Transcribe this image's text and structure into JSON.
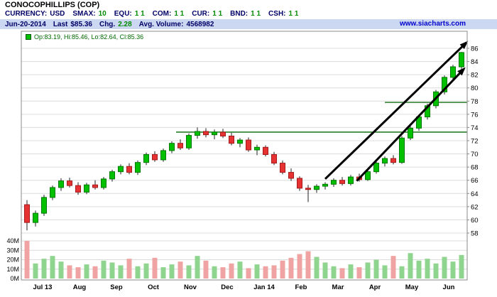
{
  "header": {
    "title": "CONOCOPHILLIPS (COP)",
    "stats": [
      {
        "label": "CURRENCY:",
        "value": "USD",
        "value_color": "#000066"
      },
      {
        "label": "SMAX:",
        "value": "10",
        "value_color": "#008a00"
      },
      {
        "label": "EQU:",
        "value": "1 1",
        "value_color": "#008a00"
      },
      {
        "label": "COM:",
        "value": "1 1",
        "value_color": "#008a00"
      },
      {
        "label": "CUR:",
        "value": "1 1",
        "value_color": "#008a00"
      },
      {
        "label": "BND:",
        "value": "1 1",
        "value_color": "#008a00"
      },
      {
        "label": "CSH:",
        "value": "1 1",
        "value_color": "#008a00"
      }
    ],
    "info_bar": {
      "date": "Jun-20-2014",
      "last_label": "Last",
      "last_value": "$85.36",
      "chg_label": "Chg.",
      "chg_value": "2.28",
      "avg_volume_label": "Avg. Volume:",
      "avg_volume_value": "4568982",
      "website": "www.siacharts.com"
    }
  },
  "legend": {
    "text": "Op:83.19, Hi:85.46, Lo:82.64, Cl:85.36"
  },
  "chart_data": {
    "type": "candlestick",
    "title": "CONOCOPHILLIPS (COP) weekly price with volume",
    "x_labels": [
      "Jul 13",
      "Aug",
      "Sep",
      "Oct",
      "Nov",
      "Dec",
      "Jan 14",
      "Feb",
      "Mar",
      "Apr",
      "May",
      "Jun"
    ],
    "price_axis": {
      "min": 58,
      "max": 86
    },
    "price_ticks": [
      58,
      60,
      62,
      64,
      66,
      68,
      70,
      72,
      74,
      76,
      78,
      80,
      82,
      84,
      86
    ],
    "volume_ticks_m": [
      0,
      10,
      20,
      30,
      40
    ],
    "last_candle": {
      "open": 83.19,
      "high": 85.46,
      "low": 82.64,
      "close": 85.36
    },
    "candles_ohlc": [
      [
        62.3,
        63.0,
        58.4,
        59.6
      ],
      [
        59.6,
        61.4,
        59.0,
        61.0
      ],
      [
        61.0,
        63.8,
        60.6,
        63.4
      ],
      [
        63.4,
        65.2,
        63.0,
        64.9
      ],
      [
        64.9,
        66.3,
        64.4,
        65.9
      ],
      [
        65.9,
        66.4,
        64.9,
        65.2
      ],
      [
        65.2,
        65.7,
        63.8,
        64.2
      ],
      [
        64.2,
        65.6,
        63.9,
        65.3
      ],
      [
        65.3,
        66.0,
        64.6,
        64.9
      ],
      [
        64.9,
        66.5,
        64.6,
        66.2
      ],
      [
        66.2,
        67.6,
        65.8,
        67.3
      ],
      [
        67.3,
        68.4,
        66.9,
        68.1
      ],
      [
        68.1,
        68.6,
        66.9,
        67.2
      ],
      [
        67.2,
        69.0,
        66.8,
        68.7
      ],
      [
        68.7,
        70.2,
        68.3,
        69.9
      ],
      [
        69.9,
        70.4,
        68.8,
        69.1
      ],
      [
        69.1,
        70.8,
        68.8,
        70.5
      ],
      [
        70.5,
        71.9,
        70.1,
        71.6
      ],
      [
        71.6,
        72.2,
        70.6,
        70.9
      ],
      [
        70.9,
        73.1,
        70.6,
        72.8
      ],
      [
        72.8,
        74.0,
        72.3,
        73.4
      ],
      [
        73.4,
        73.9,
        72.5,
        72.9
      ],
      [
        72.9,
        73.7,
        72.2,
        73.3
      ],
      [
        73.3,
        73.8,
        72.4,
        72.7
      ],
      [
        72.7,
        73.2,
        71.3,
        71.6
      ],
      [
        71.6,
        72.4,
        71.0,
        72.1
      ],
      [
        72.1,
        72.5,
        70.3,
        70.6
      ],
      [
        70.6,
        71.4,
        69.8,
        71.0
      ],
      [
        71.0,
        71.3,
        69.6,
        69.9
      ],
      [
        69.9,
        70.3,
        68.3,
        68.6
      ],
      [
        68.6,
        69.0,
        66.9,
        67.2
      ],
      [
        67.2,
        67.8,
        65.9,
        66.3
      ],
      [
        66.3,
        66.6,
        64.4,
        64.8
      ],
      [
        64.8,
        65.3,
        62.7,
        64.6
      ],
      [
        64.6,
        65.4,
        64.1,
        65.1
      ],
      [
        65.1,
        65.7,
        64.6,
        65.4
      ],
      [
        65.4,
        66.3,
        65.0,
        66.0
      ],
      [
        66.0,
        66.5,
        65.2,
        65.5
      ],
      [
        65.5,
        66.8,
        65.2,
        66.5
      ],
      [
        66.5,
        67.0,
        65.8,
        66.1
      ],
      [
        66.1,
        67.6,
        65.9,
        67.3
      ],
      [
        67.3,
        68.9,
        67.0,
        68.6
      ],
      [
        68.6,
        69.6,
        68.1,
        69.3
      ],
      [
        69.3,
        69.8,
        68.4,
        68.7
      ],
      [
        68.7,
        72.7,
        68.5,
        72.4
      ],
      [
        72.4,
        74.2,
        72.1,
        73.9
      ],
      [
        73.9,
        75.9,
        73.5,
        75.6
      ],
      [
        75.6,
        77.6,
        75.2,
        77.3
      ],
      [
        77.3,
        79.7,
        76.9,
        79.4
      ],
      [
        79.4,
        81.9,
        79.0,
        81.6
      ],
      [
        81.6,
        83.5,
        81.2,
        83.2
      ],
      [
        83.19,
        85.46,
        82.64,
        85.36
      ]
    ],
    "volumes_m": [
      40,
      16,
      21,
      24,
      18,
      14,
      12,
      15,
      13,
      19,
      17,
      14,
      21,
      13,
      16,
      22,
      12,
      15,
      18,
      14,
      24,
      19,
      13,
      12,
      16,
      18,
      11,
      15,
      13,
      14,
      19,
      22,
      26,
      29,
      23,
      17,
      13,
      11,
      15,
      12,
      17,
      20,
      14,
      24,
      13,
      27,
      19,
      21,
      16,
      23,
      18,
      25
    ],
    "levels": [
      {
        "price": 73.3,
        "from_index": 17.5,
        "to_right_edge": true
      },
      {
        "price": 77.8,
        "from_index": 42.0,
        "to_right_edge": true
      }
    ],
    "arrows": [
      {
        "from_index": 35.0,
        "from_price": 66.2,
        "to_index": 51.6,
        "to_price": 86.9
      },
      {
        "from_index": 38.7,
        "from_price": 65.9,
        "to_index": 51.3,
        "to_price": 82.9
      }
    ],
    "colors": {
      "up": "#00c000",
      "up_border": "#007a00",
      "down": "#e63232",
      "down_border": "#a51a1a",
      "vol_up": "#8fd48f",
      "vol_down": "#f0a3a3",
      "level": "#006600",
      "grid": "#dcdcdc",
      "border": "#8a8a8a",
      "arrow": "#000000"
    }
  }
}
